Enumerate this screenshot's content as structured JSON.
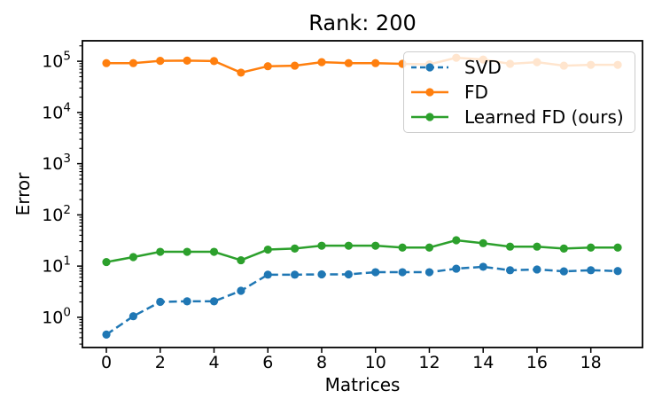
{
  "chart_data": {
    "type": "line",
    "title": "Rank: 200",
    "xlabel": "Matrices",
    "ylabel": "Error",
    "yscale": "log",
    "grid": false,
    "legend_position": "upper right",
    "x": [
      0,
      1,
      2,
      3,
      4,
      5,
      6,
      7,
      8,
      9,
      10,
      11,
      12,
      13,
      14,
      15,
      16,
      17,
      18,
      19
    ],
    "x_ticks": [
      0,
      2,
      4,
      6,
      8,
      10,
      12,
      14,
      16,
      18
    ],
    "y_tick_base": "10",
    "y_tick_exponents": [
      0,
      1,
      2,
      3,
      4,
      5
    ],
    "xlim": [
      -0.89,
      19.92
    ],
    "ylim_log10": [
      -0.59,
      5.4
    ],
    "series": [
      {
        "name": "SVD",
        "color": "#1f77b4",
        "line_style": "dashed",
        "marker": "circle",
        "values": [
          0.46,
          1.05,
          2.0,
          2.05,
          2.05,
          3.3,
          6.8,
          6.8,
          6.9,
          6.9,
          7.6,
          7.6,
          7.6,
          8.9,
          9.7,
          8.3,
          8.6,
          7.9,
          8.3,
          8.0
        ]
      },
      {
        "name": "FD",
        "color": "#ff7f0e",
        "line_style": "solid",
        "marker": "circle",
        "values": [
          92000,
          92000,
          102000,
          103000,
          101000,
          60000,
          80000,
          82000,
          96000,
          92000,
          92000,
          89000,
          87000,
          117000,
          108000,
          89000,
          96000,
          82000,
          85000,
          85000
        ]
      },
      {
        "name": "Learned FD (ours)",
        "color": "#2ca02c",
        "line_style": "solid",
        "marker": "circle",
        "values": [
          12,
          15,
          19,
          19,
          19,
          13,
          21,
          22,
          25,
          25,
          25,
          23,
          23,
          32,
          28,
          24,
          24,
          22,
          23,
          23
        ]
      }
    ]
  }
}
